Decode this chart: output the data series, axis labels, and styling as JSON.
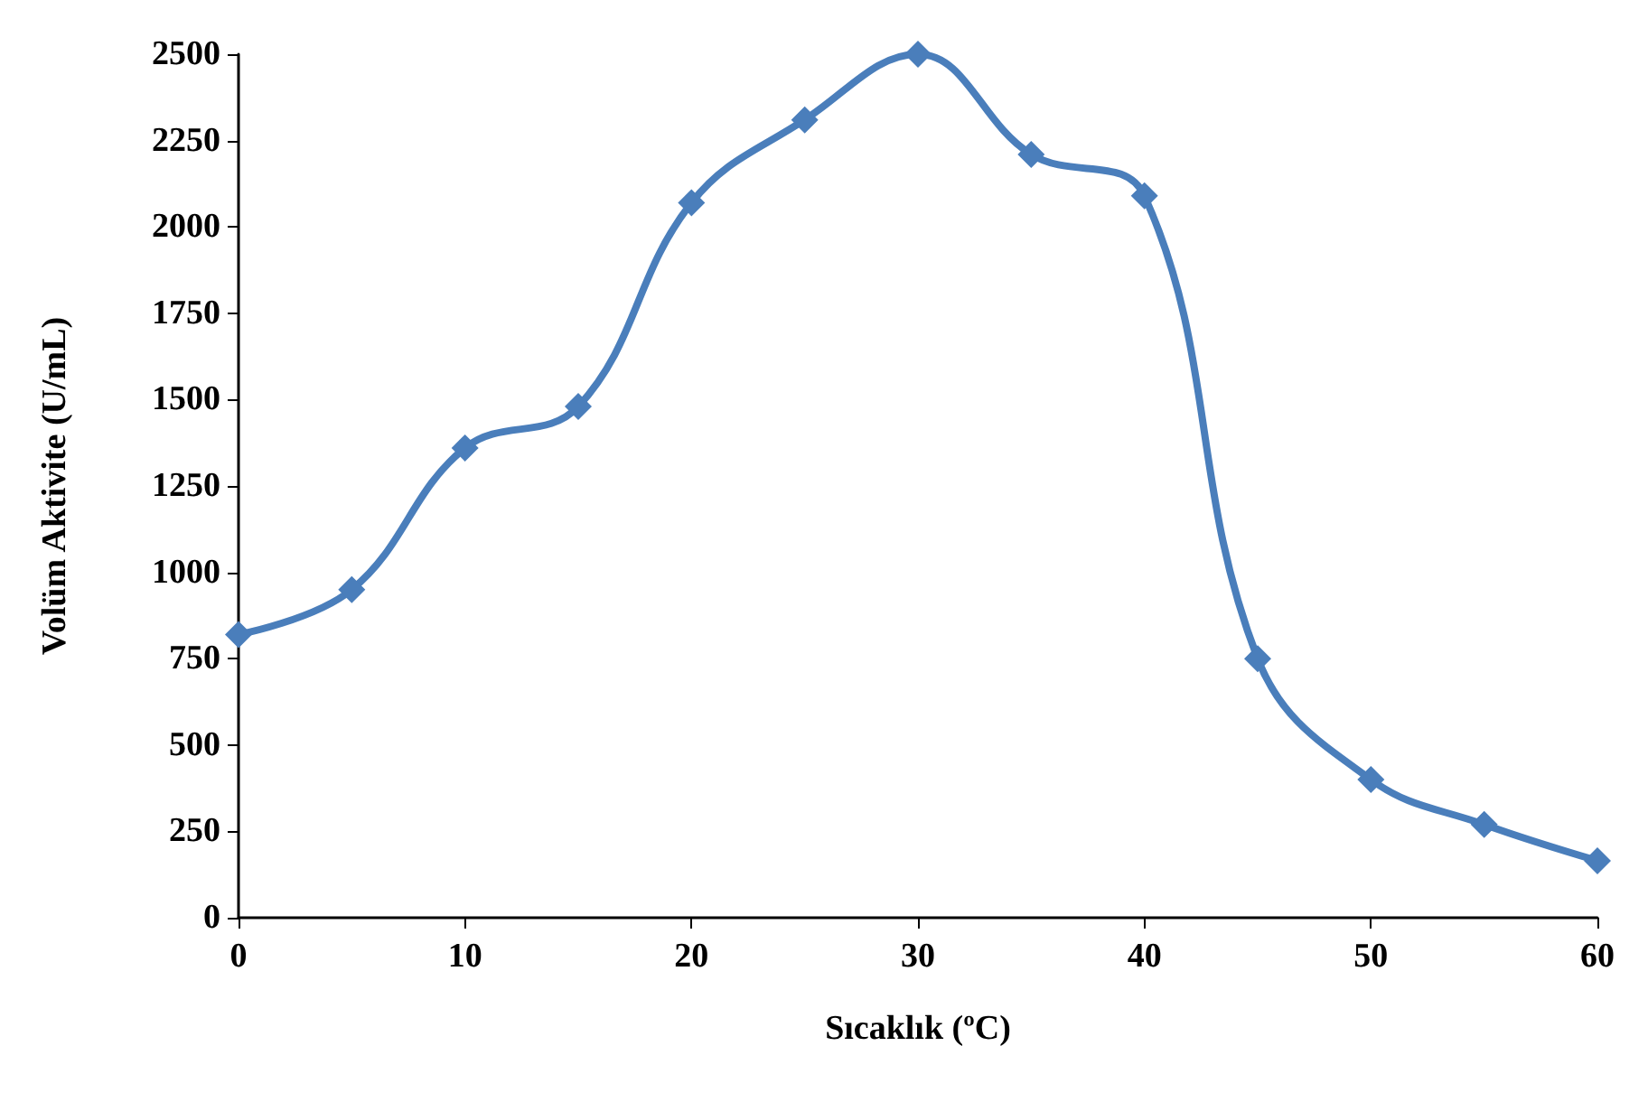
{
  "chart_data": {
    "type": "line",
    "xlabel": "Sıcaklık (ºC)",
    "ylabel": "Volüm Aktivite (U/mL)",
    "x": [
      0,
      5,
      10,
      15,
      20,
      25,
      30,
      35,
      40,
      45,
      50,
      55,
      60
    ],
    "series": [
      {
        "color": "#4a7ebb",
        "values": [
          820,
          950,
          1360,
          1480,
          2070,
          2310,
          2500,
          2210,
          2090,
          750,
          400,
          270,
          165
        ]
      }
    ],
    "xlim": [
      0,
      60
    ],
    "xticks": [
      0,
      10,
      20,
      30,
      40,
      50,
      60
    ],
    "ylim": [
      0,
      2500
    ],
    "yticks": [
      0,
      250,
      500,
      750,
      1000,
      1250,
      1500,
      1750,
      2000,
      2250,
      2500
    ],
    "grid": false,
    "marker": "diamond",
    "line_style": "solid"
  }
}
